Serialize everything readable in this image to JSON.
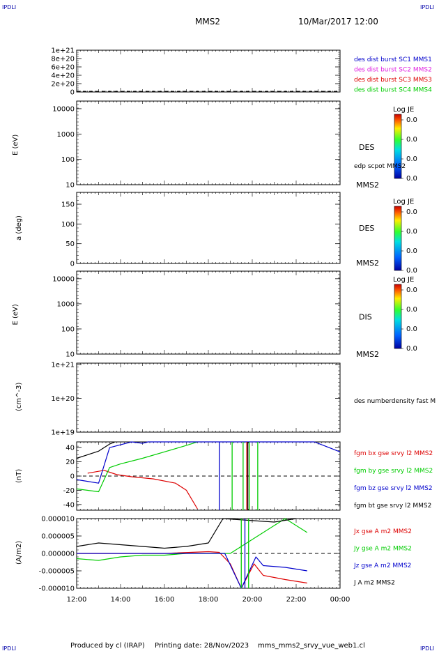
{
  "corner_label": "IPDLI",
  "header": {
    "spacecraft": "MMS2",
    "datetime": "10/Mar/2017 12:00"
  },
  "footer": {
    "produced_by": "Produced by cl (IRAP)",
    "printing_date": "Printing date: 28/Nov/2023",
    "filename": "mms_mms2_srvy_vue_web1.cl"
  },
  "colors": {
    "blue": "#0000cc",
    "magenta": "#e020e0",
    "red": "#dd0000",
    "green": "#00cc00",
    "black": "#000000"
  },
  "chart_data": [
    {
      "id": "panel1",
      "type": "line",
      "yticks": [
        "1e+21",
        "8e+20",
        "6e+20",
        "4e+20",
        "2e+20",
        "0"
      ],
      "ylim": [
        0,
        1e+21
      ],
      "series": [
        {
          "name": "des dist burst SC1 MMS1",
          "color": "#0000cc"
        },
        {
          "name": "des dist burst SC2 MMS2",
          "color": "#e020e0"
        },
        {
          "name": "des dist burst SC3 MMS3",
          "color": "#dd0000"
        },
        {
          "name": "des dist burst SC4 MMS4",
          "color": "#00cc00"
        }
      ]
    },
    {
      "id": "panel2",
      "type": "heatmap",
      "ylabel": "E (eV)",
      "yticks": [
        "10000",
        "1000",
        "100",
        "10"
      ],
      "yscale": "log",
      "ylim": [
        10,
        20000
      ],
      "instrument": "DES",
      "overlay_label": "edp scpot MMS2",
      "corner": "MMS2",
      "colorbar": {
        "title": "Log JE",
        "ticks": [
          "0.0",
          "0.0",
          "0.0",
          "0.0"
        ]
      }
    },
    {
      "id": "panel3",
      "type": "heatmap",
      "ylabel": "a (deg)",
      "yticks": [
        "150",
        "100",
        "50",
        "0"
      ],
      "ylim": [
        0,
        180
      ],
      "instrument": "DES",
      "corner": "MMS2",
      "colorbar": {
        "title": "Log JE",
        "ticks": [
          "0.0",
          "0.0",
          "0.0",
          "0.0"
        ]
      }
    },
    {
      "id": "panel4",
      "type": "heatmap",
      "ylabel": "E (eV)",
      "yticks": [
        "10000",
        "1000",
        "100",
        "10"
      ],
      "yscale": "log",
      "ylim": [
        10,
        20000
      ],
      "instrument": "DIS",
      "corner": "MMS2",
      "colorbar": {
        "title": "Log JE",
        "ticks": [
          "0.0",
          "0.0",
          "0.0",
          "0.0"
        ]
      }
    },
    {
      "id": "panel5",
      "type": "line",
      "ylabel": "(cm^-3)",
      "yticks": [
        "1e+21",
        "1e+20",
        "1e+19"
      ],
      "yscale": "log",
      "series": [
        {
          "name": "des numberdensity fast M",
          "color": "#000000"
        }
      ]
    },
    {
      "id": "panel6",
      "type": "line",
      "ylabel": "(nT)",
      "yticks": [
        "40",
        "20",
        "0",
        "-20",
        "-40"
      ],
      "ylim": [
        -48,
        48
      ],
      "series": [
        {
          "name": "fgm bx gse srvy l2 MMS2",
          "color": "#dd0000",
          "x": [
            "12:30",
            "13:15",
            "13:50",
            "14:30",
            "15:30",
            "16:30",
            "17:00",
            "17:30"
          ],
          "values": [
            4,
            8,
            2,
            -1,
            -4,
            -10,
            -20,
            -46
          ]
        },
        {
          "name": "fgm by gse srvy l2 MMS2",
          "color": "#00cc00",
          "x": [
            "12:00",
            "13:00",
            "13:30",
            "14:00",
            "15:00",
            "16:00",
            "17:00",
            "17:30"
          ],
          "values": [
            -18,
            -22,
            12,
            17,
            25,
            34,
            43,
            48
          ]
        },
        {
          "name": "fgm bz gse srvy l2 MMS2",
          "color": "#0000cc",
          "x": [
            "12:00",
            "13:00",
            "13:30",
            "14:30",
            "15:00",
            "15:15",
            "22:50",
            "23:30",
            "00:00"
          ],
          "values": [
            -5,
            -10,
            40,
            48,
            46,
            48,
            48,
            40,
            34
          ]
        },
        {
          "name": "fgm bt gse srvy l2 MMS2",
          "color": "#000000",
          "x": [
            "12:00",
            "12:30",
            "13:00",
            "13:30",
            "13:45"
          ],
          "values": [
            25,
            30,
            35,
            45,
            48
          ]
        }
      ]
    },
    {
      "id": "panel7",
      "type": "line",
      "ylabel": "(A/m2)",
      "yticks": [
        "0.000010",
        "0.000005",
        "0.000000",
        "-0.000005",
        "-0.000010"
      ],
      "ylim": [
        -1e-05,
        1e-05
      ],
      "xticks": [
        "12:00",
        "14:00",
        "16:00",
        "18:00",
        "20:00",
        "22:00",
        "00:00"
      ],
      "series": [
        {
          "name": "Jx gse A m2 MMS2",
          "color": "#dd0000",
          "x": [
            "12:00",
            "14:00",
            "16:00",
            "18:00",
            "18:30",
            "19:00",
            "19:30",
            "20:05",
            "20:30",
            "21:30",
            "22:30"
          ],
          "values": [
            0.0,
            0.0,
            0.0,
            5e-07,
            3e-07,
            -3e-06,
            -1e-05,
            -3e-06,
            -6.3e-06,
            -7.5e-06,
            -8.5e-06
          ]
        },
        {
          "name": "Jy gse A m2 MMS2",
          "color": "#00cc00",
          "x": [
            "12:00",
            "13:00",
            "14:00",
            "15:00",
            "16:00",
            "17:00",
            "18:00",
            "19:00",
            "21:30",
            "22:00",
            "22:30"
          ],
          "values": [
            -1.5e-06,
            -2e-06,
            -1e-06,
            -5e-07,
            -5e-07,
            0.0,
            0.0,
            0.0,
            1e-05,
            8e-06,
            6e-06
          ]
        },
        {
          "name": "Jz gse A m2 MMS2",
          "color": "#0000cc",
          "x": [
            "12:00",
            "14:00",
            "16:00",
            "18:00",
            "18:45",
            "19:30",
            "20:10",
            "20:30",
            "21:30",
            "22:30"
          ],
          "values": [
            0.0,
            0.0,
            0.0,
            0.0,
            0.0,
            -1e-05,
            -1e-06,
            -3.5e-06,
            -4e-06,
            -5e-06
          ]
        },
        {
          "name": "J A m2 MMS2",
          "color": "#000000",
          "x": [
            "12:00",
            "13:00",
            "14:00",
            "15:00",
            "16:00",
            "17:00",
            "18:00",
            "18:40",
            "21:00",
            "22:00"
          ],
          "values": [
            2e-06,
            3e-06,
            2.5e-06,
            2e-06,
            1.5e-06,
            2e-06,
            3e-06,
            1e-05,
            9e-06,
            1e-05
          ]
        }
      ]
    }
  ]
}
